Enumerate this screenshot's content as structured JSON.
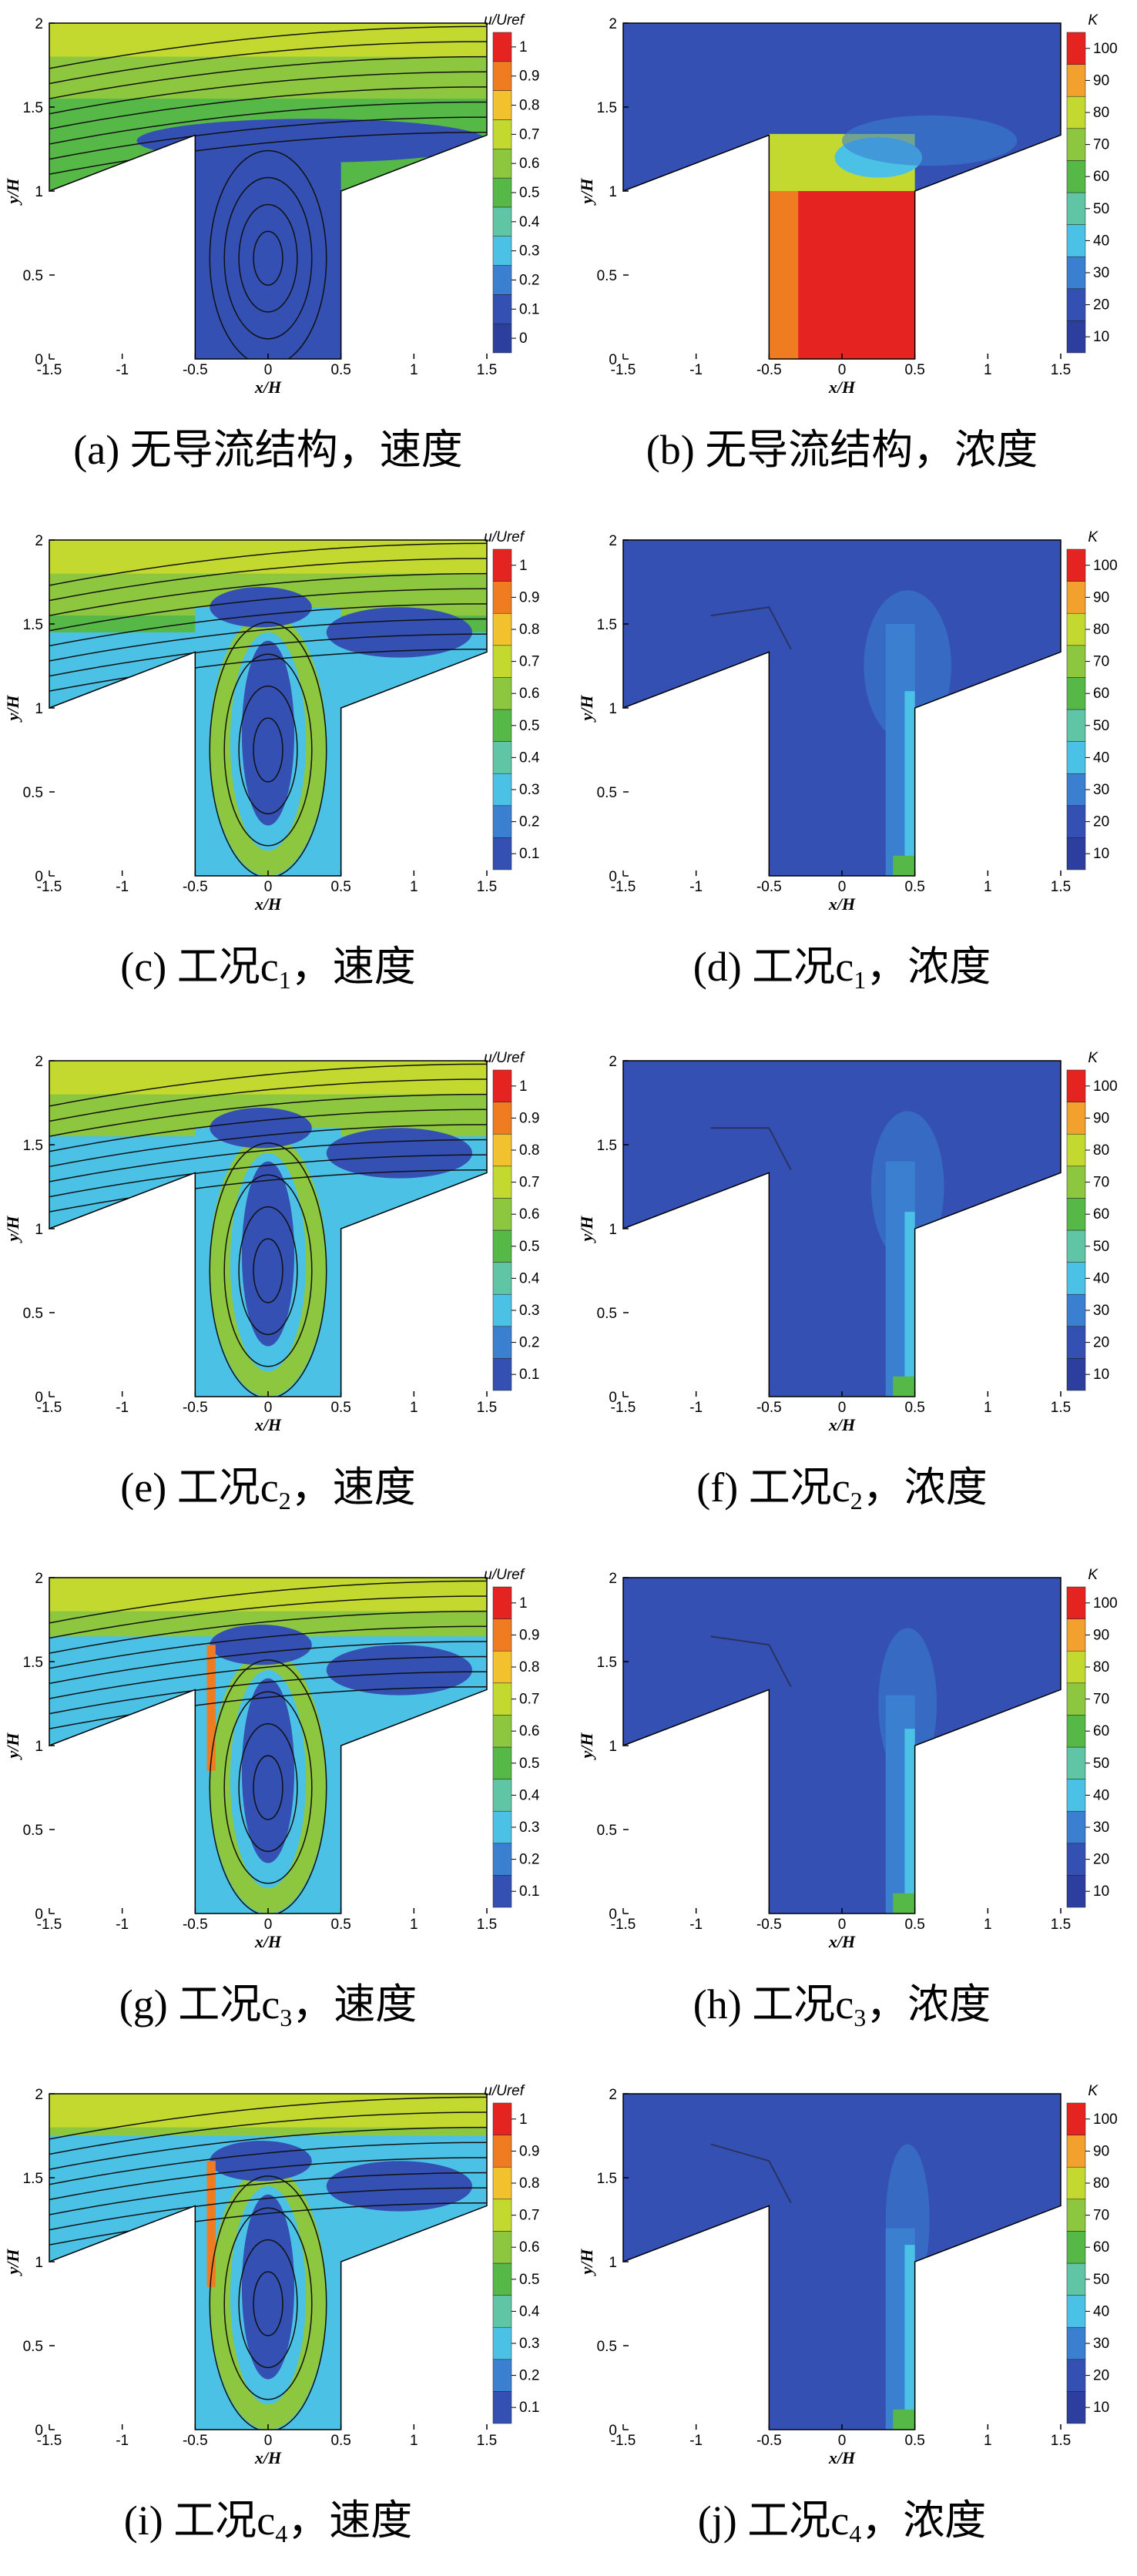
{
  "axes": {
    "x_label": "x/H",
    "y_label": "y/H",
    "xticks": [
      -1.5,
      -1,
      -0.5,
      0,
      0.5,
      1,
      1.5
    ],
    "yticks": [
      0,
      0.5,
      1,
      1.5,
      2
    ]
  },
  "panels": [
    {
      "caption": {
        "prefix": "(a) 无导流结构，速度"
      },
      "colorbar": {
        "title": "u/Uref",
        "ticks": [
          0,
          0.1,
          0.2,
          0.3,
          0.4,
          0.5,
          0.6,
          0.7,
          0.8,
          0.9,
          1
        ]
      }
    },
    {
      "caption": {
        "prefix": "(b) 无导流结构，浓度"
      },
      "colorbar": {
        "title": "K",
        "ticks": [
          10,
          20,
          30,
          40,
          50,
          60,
          70,
          80,
          90,
          100
        ]
      }
    },
    {
      "caption": {
        "prefix": "(c) 工况c",
        "sub": "1",
        "suffix": "，速度"
      },
      "colorbar": {
        "title": "u/Uref",
        "ticks": [
          0.1,
          0.2,
          0.3,
          0.4,
          0.5,
          0.6,
          0.7,
          0.8,
          0.9,
          1
        ]
      }
    },
    {
      "caption": {
        "prefix": "(d) 工况c",
        "sub": "1",
        "suffix": "，浓度"
      },
      "colorbar": {
        "title": "K",
        "ticks": [
          10,
          20,
          30,
          40,
          50,
          60,
          70,
          80,
          90,
          100
        ]
      }
    },
    {
      "caption": {
        "prefix": "(e) 工况c",
        "sub": "2",
        "suffix": "，速度"
      },
      "colorbar": {
        "title": "u/Uref",
        "ticks": [
          0.1,
          0.2,
          0.3,
          0.4,
          0.5,
          0.6,
          0.7,
          0.8,
          0.9,
          1
        ]
      }
    },
    {
      "caption": {
        "prefix": "(f) 工况c",
        "sub": "2",
        "suffix": "，浓度"
      },
      "colorbar": {
        "title": "K",
        "ticks": [
          10,
          20,
          30,
          40,
          50,
          60,
          70,
          80,
          90,
          100
        ]
      }
    },
    {
      "caption": {
        "prefix": "(g) 工况c",
        "sub": "3",
        "suffix": "，速度"
      },
      "colorbar": {
        "title": "u/Uref",
        "ticks": [
          0.1,
          0.2,
          0.3,
          0.4,
          0.5,
          0.6,
          0.7,
          0.8,
          0.9,
          1
        ]
      }
    },
    {
      "caption": {
        "prefix": "(h) 工况c",
        "sub": "3",
        "suffix": "，浓度"
      },
      "colorbar": {
        "title": "K",
        "ticks": [
          10,
          20,
          30,
          40,
          50,
          60,
          70,
          80,
          90,
          100
        ]
      }
    },
    {
      "caption": {
        "prefix": "(i) 工况c",
        "sub": "4",
        "suffix": "，速度"
      },
      "colorbar": {
        "title": "u/Uref",
        "ticks": [
          0.1,
          0.2,
          0.3,
          0.4,
          0.5,
          0.6,
          0.7,
          0.8,
          0.9,
          1
        ]
      }
    },
    {
      "caption": {
        "prefix": "(j) 工况c",
        "sub": "4",
        "suffix": "，浓度"
      },
      "colorbar": {
        "title": "K",
        "ticks": [
          10,
          20,
          30,
          40,
          50,
          60,
          70,
          80,
          90,
          100
        ]
      }
    }
  ]
}
